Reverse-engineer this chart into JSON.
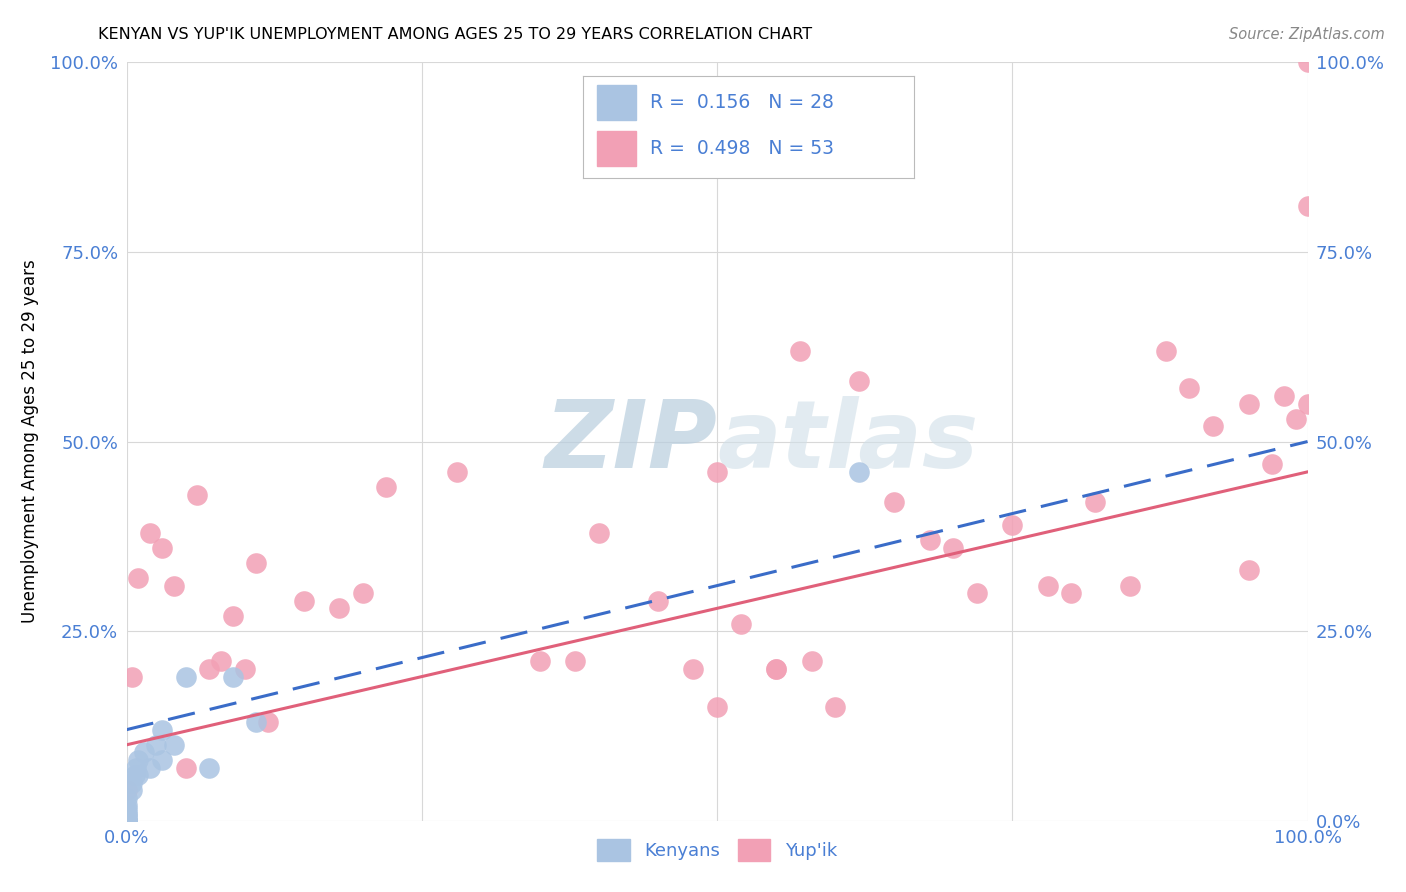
{
  "title": "KENYAN VS YUP'IK UNEMPLOYMENT AMONG AGES 25 TO 29 YEARS CORRELATION CHART",
  "source": "Source: ZipAtlas.com",
  "ylabel": "Unemployment Among Ages 25 to 29 years",
  "xlim": [
    0.0,
    1.0
  ],
  "ylim": [
    0.0,
    1.0
  ],
  "kenyan_R": 0.156,
  "kenyan_N": 28,
  "yupik_R": 0.498,
  "yupik_N": 53,
  "kenyan_color": "#aac4e2",
  "yupik_color": "#f2a0b5",
  "kenyan_line_color": "#3a6cc8",
  "yupik_line_color": "#e0607a",
  "tick_color": "#4a7fd4",
  "grid_color": "#d8d8d8",
  "kenyan_x": [
    0.0,
    0.0,
    0.0,
    0.0,
    0.0,
    0.0,
    0.0,
    0.0,
    0.0,
    0.0,
    0.0,
    0.005,
    0.005,
    0.007,
    0.008,
    0.01,
    0.01,
    0.015,
    0.02,
    0.025,
    0.03,
    0.03,
    0.04,
    0.05,
    0.07,
    0.09,
    0.11,
    0.62
  ],
  "kenyan_y": [
    0.0,
    0.0,
    0.0,
    0.0,
    0.0,
    0.005,
    0.008,
    0.01,
    0.015,
    0.02,
    0.03,
    0.04,
    0.05,
    0.06,
    0.07,
    0.06,
    0.08,
    0.09,
    0.07,
    0.1,
    0.08,
    0.12,
    0.1,
    0.19,
    0.07,
    0.19,
    0.13,
    0.46
  ],
  "yupik_x": [
    0.0,
    0.005,
    0.01,
    0.02,
    0.03,
    0.04,
    0.05,
    0.06,
    0.07,
    0.08,
    0.09,
    0.1,
    0.11,
    0.12,
    0.15,
    0.18,
    0.2,
    0.22,
    0.28,
    0.35,
    0.38,
    0.4,
    0.45,
    0.48,
    0.5,
    0.55,
    0.58,
    0.6,
    0.62,
    0.65,
    0.68,
    0.7,
    0.72,
    0.75,
    0.78,
    0.8,
    0.82,
    0.85,
    0.88,
    0.9,
    0.92,
    0.95,
    0.95,
    0.97,
    0.98,
    0.99,
    1.0,
    1.0,
    1.0,
    0.5,
    0.52,
    0.55,
    0.57
  ],
  "yupik_y": [
    0.04,
    0.19,
    0.32,
    0.38,
    0.36,
    0.31,
    0.07,
    0.43,
    0.2,
    0.21,
    0.27,
    0.2,
    0.34,
    0.13,
    0.29,
    0.28,
    0.3,
    0.44,
    0.46,
    0.21,
    0.21,
    0.38,
    0.29,
    0.2,
    0.15,
    0.2,
    0.21,
    0.15,
    0.58,
    0.42,
    0.37,
    0.36,
    0.3,
    0.39,
    0.31,
    0.3,
    0.42,
    0.31,
    0.62,
    0.57,
    0.52,
    0.33,
    0.55,
    0.47,
    0.56,
    0.53,
    0.55,
    0.81,
    1.0,
    0.46,
    0.26,
    0.2,
    0.62
  ],
  "kenyan_line_x0": 0.0,
  "kenyan_line_x1": 1.0,
  "kenyan_line_y0": 0.12,
  "kenyan_line_y1": 0.5,
  "yupik_line_x0": 0.0,
  "yupik_line_x1": 1.0,
  "yupik_line_y0": 0.1,
  "yupik_line_y1": 0.46
}
